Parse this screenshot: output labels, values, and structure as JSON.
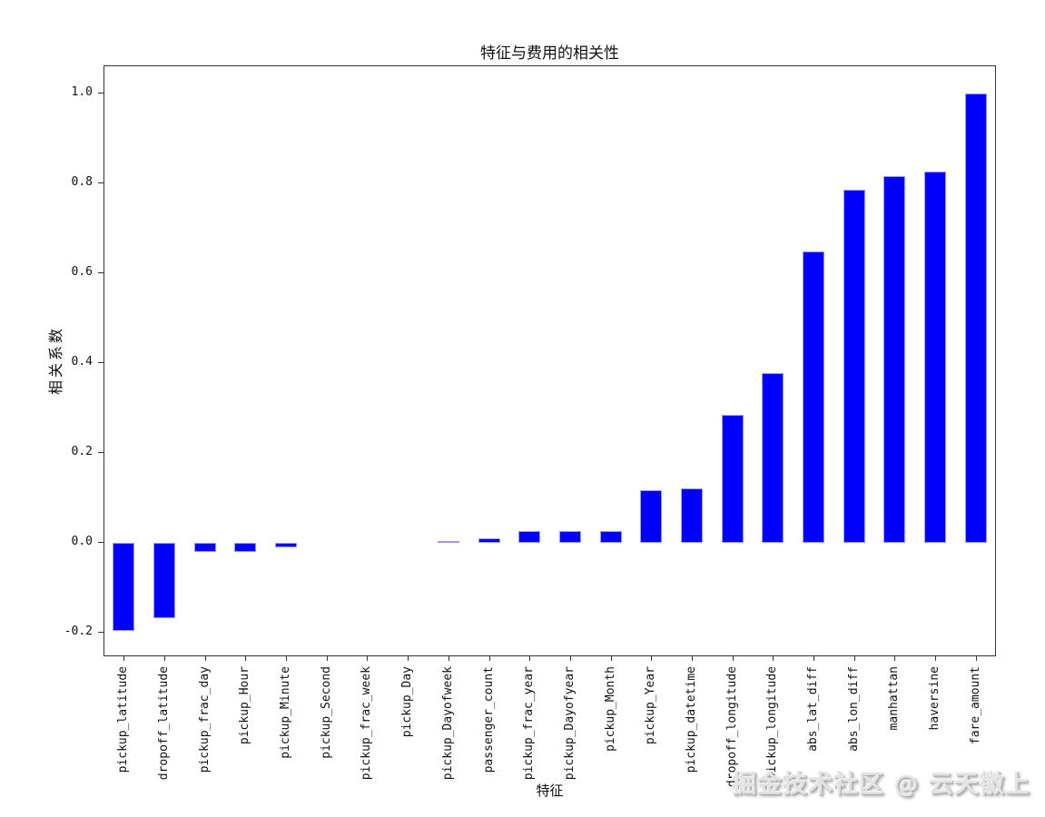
{
  "watermark": "掘金技术社区 @ 云天徽上",
  "chart_data": {
    "type": "bar",
    "title": "特征与费用的相关性",
    "xlabel": "特征",
    "ylabel": "相关系数",
    "bar_color": "#0000fe",
    "bar_edge_color": "#9a9af8",
    "spine_color": "#333333",
    "categories": [
      "pickup_latitude",
      "dropoff_latitude",
      "pickup_frac_day",
      "pickup_Hour",
      "pickup_Minute",
      "pickup_Second",
      "pickup_frac_week",
      "pickup_Day",
      "pickup_Dayofweek",
      "passenger_count",
      "pickup_frac_year",
      "pickup_Dayofyear",
      "pickup_Month",
      "pickup_Year",
      "pickup_datetime",
      "dropoff_longitude",
      "pickup_longitude",
      "abs_lat_diff",
      "abs_lon_diff",
      "manhattan",
      "haversine",
      "fare_amount"
    ],
    "values": [
      -0.196,
      -0.168,
      -0.02,
      -0.02,
      -0.01,
      0.0,
      0.001,
      0.001,
      0.004,
      0.01,
      0.026,
      0.026,
      0.026,
      0.117,
      0.122,
      0.285,
      0.378,
      0.648,
      0.786,
      0.817,
      0.827,
      1.0
    ],
    "yticks": [
      1.0,
      0.8,
      0.6,
      0.4,
      0.2,
      0.0,
      -0.2
    ],
    "ytick_labels": [
      "1.0",
      "0.8",
      "0.6",
      "0.4",
      "0.2",
      "0.0",
      "-0.2"
    ],
    "ylim": [
      -0.2545,
      1.0606
    ],
    "grid": false,
    "legend_position": "none"
  }
}
